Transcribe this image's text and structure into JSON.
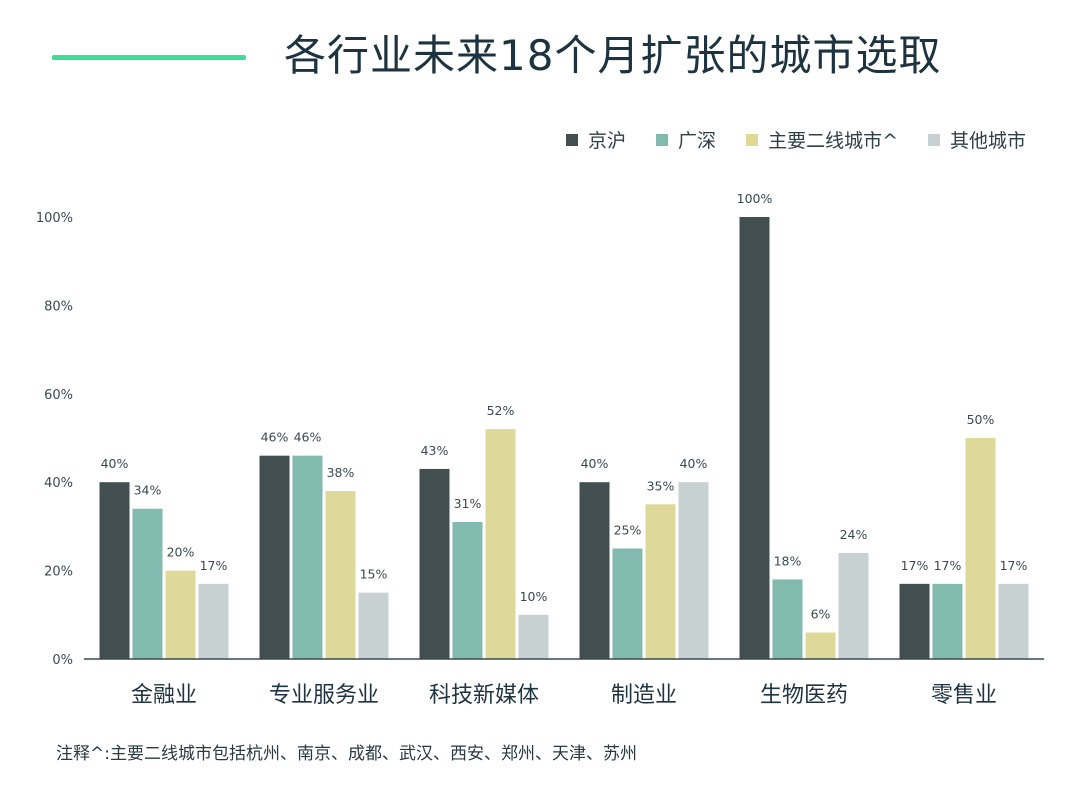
{
  "title": "各行业未来18个月扩张的城市选取",
  "note": "注释^:主要二线城市包括杭州、南京、成都、武汉、西安、郑州、天津、苏州",
  "chart_data": {
    "type": "bar",
    "categories": [
      "金融业",
      "专业服务业",
      "科技新媒体",
      "制造业",
      "生物医药",
      "零售业"
    ],
    "series": [
      {
        "name": "京沪",
        "color": "#414f51",
        "values": [
          40,
          46,
          43,
          40,
          100,
          17
        ]
      },
      {
        "name": "广深",
        "color": "#82bab0",
        "values": [
          34,
          46,
          31,
          25,
          18,
          17
        ]
      },
      {
        "name": "主要二线城市^",
        "color": "#dfd999",
        "values": [
          20,
          38,
          52,
          35,
          6,
          50
        ]
      },
      {
        "name": "其他城市",
        "color": "#c8d1d2",
        "values": [
          17,
          15,
          10,
          40,
          24,
          17
        ]
      }
    ],
    "ylim": [
      0,
      100
    ],
    "yticks": [
      "0%",
      "20%",
      "40%",
      "60%",
      "80%",
      "100%"
    ],
    "value_suffix": "%",
    "legend_position": "top-right",
    "grid": false
  }
}
